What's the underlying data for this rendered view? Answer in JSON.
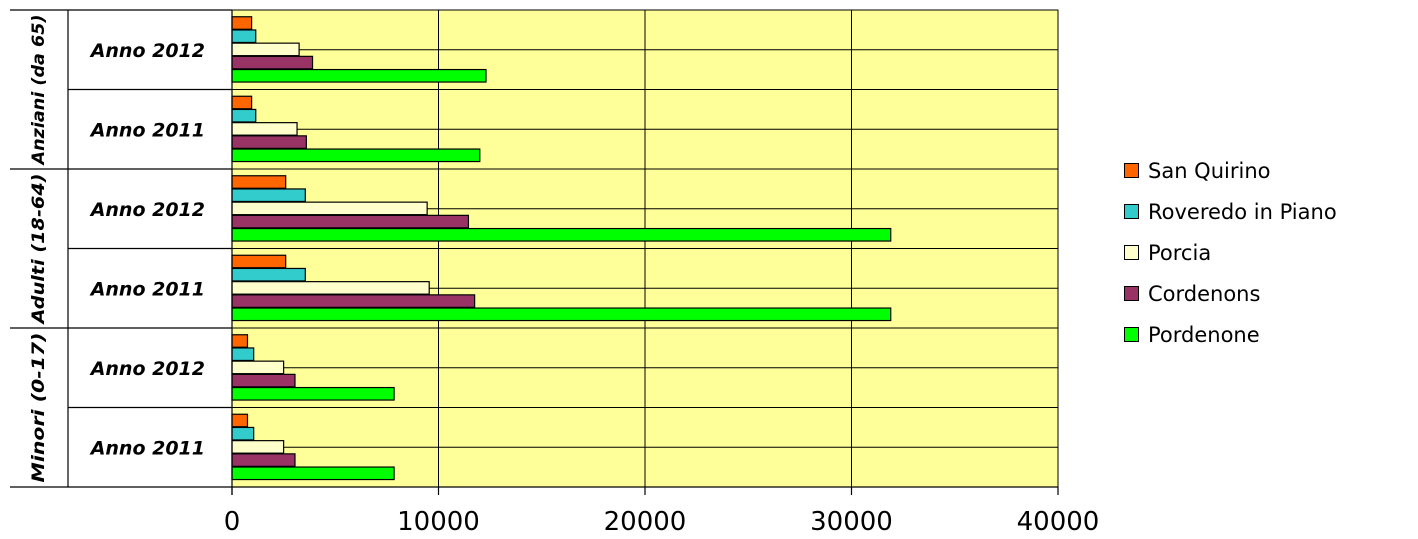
{
  "chart_data": {
    "type": "bar",
    "orientation": "horizontal",
    "grid": true,
    "legend_position": "right",
    "xlim": [
      0,
      40000
    ],
    "x_ticks": [
      "0",
      "10000",
      "20000",
      "30000",
      "40000"
    ],
    "x_tick_values": [
      0,
      10000,
      20000,
      30000,
      40000
    ],
    "groups": [
      {
        "label": "Anziani (da 65)",
        "categories": [
          "Anno 2012",
          "Anno 2011"
        ]
      },
      {
        "label": "Adulti (18-64)",
        "categories": [
          "Anno 2012",
          "Anno 2011"
        ]
      },
      {
        "label": "Minori (0-17)",
        "categories": [
          "Anno 2012",
          "Anno 2011"
        ]
      }
    ],
    "categories": [
      "Anziani (da 65) - Anno 2012",
      "Anziani (da 65) - Anno 2011",
      "Adulti (18-64) - Anno 2012",
      "Adulti (18-64) - Anno 2011",
      "Minori (0-17) - Anno 2012",
      "Minori (0-17) - Anno 2011"
    ],
    "series": [
      {
        "name": "San Quirino",
        "color": "#ff6600",
        "values": [
          950,
          950,
          2600,
          2600,
          750,
          750
        ]
      },
      {
        "name": "Roveredo in Piano",
        "color": "#33cccc",
        "values": [
          1150,
          1150,
          3550,
          3550,
          1050,
          1050
        ]
      },
      {
        "name": "Porcia",
        "color": "#ffffcc",
        "values": [
          3250,
          3150,
          9450,
          9550,
          2500,
          2500
        ]
      },
      {
        "name": "Cordenons",
        "color": "#993366",
        "values": [
          3900,
          3600,
          11450,
          11750,
          3050,
          3050
        ]
      },
      {
        "name": "Pordenone",
        "color": "#00ff00",
        "values": [
          12300,
          12000,
          31900,
          31900,
          7850,
          7850
        ]
      }
    ],
    "plot_background": "#ffff99"
  }
}
